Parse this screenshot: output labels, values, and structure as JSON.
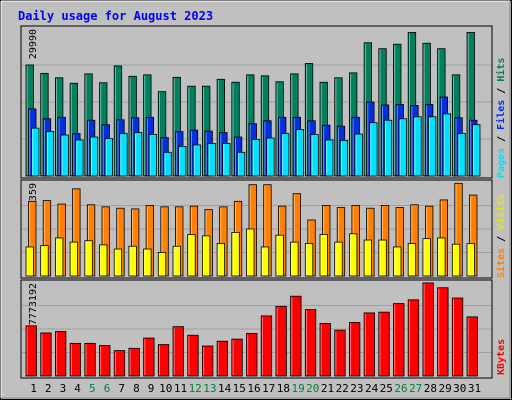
{
  "chart_data": {
    "title": "Daily usage for August 2023",
    "categories": [
      "1",
      "2",
      "3",
      "4",
      "5",
      "6",
      "7",
      "8",
      "9",
      "10",
      "11",
      "12",
      "13",
      "14",
      "15",
      "16",
      "17",
      "18",
      "19",
      "20",
      "21",
      "22",
      "23",
      "24",
      "25",
      "26",
      "27",
      "28",
      "29",
      "30",
      "31"
    ],
    "weekend_days": [
      "5",
      "6",
      "12",
      "13",
      "19",
      "20",
      "26",
      "27"
    ],
    "weekend_color": "#008040",
    "weekday_color": "#000000",
    "panels": [
      {
        "type": "bar",
        "max_label": "29990",
        "ylim": [
          0,
          29990
        ],
        "series": [
          {
            "name": "Pages",
            "color": "#00e0ff",
            "values": [
              9700,
              9000,
              8300,
              7300,
              7900,
              7600,
              8600,
              8800,
              8400,
              4800,
              6000,
              6300,
              6600,
              6600,
              4800,
              7400,
              7700,
              8600,
              9400,
              8400,
              7300,
              7200,
              8500,
              10800,
              11300,
              11600,
              12000,
              12000,
              12600,
              8600,
              10400
            ]
          },
          {
            "name": "Files",
            "color": "#0030e0",
            "values": [
              13600,
              11600,
              11900,
              8600,
              11300,
              10400,
              11400,
              11800,
              11900,
              7800,
              9000,
              9300,
              9100,
              8800,
              7900,
              10600,
              11200,
              11900,
              11900,
              11200,
              10300,
              10100,
              11900,
              15000,
              14400,
              14500,
              14300,
              14500,
              16000,
              11800,
              11300
            ]
          },
          {
            "name": "Hits",
            "color": "#00805c",
            "values": [
              22500,
              20800,
              19900,
              18800,
              20700,
              18900,
              22300,
              20200,
              20500,
              17100,
              20000,
              18200,
              18200,
              19600,
              19000,
              20500,
              20300,
              19100,
              20700,
              22800,
              19000,
              19900,
              20900,
              27000,
              25800,
              26700,
              29100,
              26900,
              25800,
              20500,
              29100
            ]
          }
        ]
      },
      {
        "type": "bar",
        "max_label": "1359",
        "ylim": [
          0,
          1359
        ],
        "series": [
          {
            "name": "Sites",
            "color": "#ff8000",
            "values": [
              1080,
              1090,
              1040,
              1260,
              1030,
              1000,
              980,
              970,
              1020,
              1000,
              1000,
              1010,
              960,
              1000,
              1080,
              1320,
              1320,
              1010,
              1190,
              810,
              1020,
              990,
              1020,
              980,
              1020,
              990,
              1030,
              1010,
              1100,
              1340,
              1170
            ]
          },
          {
            "name": "Visits",
            "color": "#ffff00",
            "values": [
              420,
              440,
              550,
              490,
              510,
              450,
              390,
              430,
              390,
              340,
              430,
              600,
              580,
              470,
              630,
              680,
              420,
              590,
              490,
              470,
              600,
              490,
              610,
              520,
              520,
              420,
              470,
              540,
              550,
              460,
              470
            ]
          }
        ]
      },
      {
        "type": "bar",
        "max_label": "7773192",
        "ylim": [
          0,
          7773192
        ],
        "series": [
          {
            "name": "KBytes",
            "color": "#ff0000",
            "values": [
              4150000,
              3560000,
              3680000,
              2700000,
              2700000,
              2520000,
              2100000,
              2290000,
              3140000,
              2600000,
              4080000,
              3370000,
              2480000,
              2880000,
              3050000,
              3520000,
              4970000,
              5760000,
              6600000,
              5490000,
              4350000,
              3790000,
              4430000,
              5220000,
              5280000,
              5990000,
              6300000,
              7700000,
              7300000,
              6450000,
              4890000
            ]
          }
        ]
      }
    ]
  }
}
